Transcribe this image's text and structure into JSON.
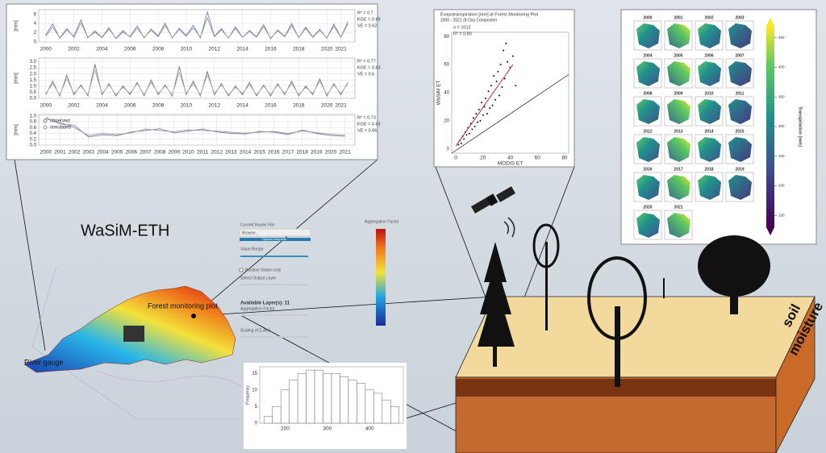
{
  "title": "WaSiM-ETH",
  "labels": {
    "forest_plot": "Forest monitoring plot",
    "gauge": "River gauge",
    "soil": "soil",
    "moisture": "moisture"
  },
  "ui": {
    "file_label": "Current Raster File",
    "browse": "Browse...",
    "upload": "Upload complete",
    "value_range": "Value Range",
    "positive": "Positive Values only",
    "select_layer": "Select Output Layer",
    "available": "Available Layer(s): 11",
    "aggregation": "Aggregation Factor",
    "scaling": "Scaling of Z-Axis",
    "colorbar_title": "Aggregation Factor"
  },
  "maps": {
    "years": [
      "2000",
      "2001",
      "2002",
      "2003",
      "2004",
      "2005",
      "2006",
      "2007",
      "2008",
      "2009",
      "2010",
      "2011",
      "2012",
      "2013",
      "2014",
      "2015",
      "2016",
      "2017",
      "2018",
      "2019",
      "2020",
      "2021"
    ],
    "colorbar_label": "Transpiration [mm]",
    "colorbar_lim": [
      130,
      470
    ],
    "colorbar_ticks": [
      150,
      200,
      250,
      300,
      350,
      400,
      450
    ]
  },
  "chart_data": [
    {
      "type": "line",
      "ylabel": "[mm]",
      "stats": [
        "R² = 0.7",
        "KGE = 0.69",
        "VE = 0.62"
      ],
      "x": [
        2000,
        2000.5,
        2001,
        2001.5,
        2002,
        2002.5,
        2003,
        2003.5,
        2004,
        2004.5,
        2005,
        2005.5,
        2006,
        2006.5,
        2007,
        2007.5,
        2008,
        2008.5,
        2009,
        2009.5,
        2010,
        2010.5,
        2011,
        2011.5,
        2012,
        2012.5,
        2013,
        2013.5,
        2014,
        2014.5,
        2015,
        2015.5,
        2016,
        2016.5,
        2017,
        2017.5,
        2018,
        2018.5,
        2019,
        2019.5,
        2020,
        2020.5,
        2021,
        2021.5
      ],
      "xlim": [
        1999.5,
        2022
      ],
      "xticks": [
        2000,
        2002,
        2004,
        2006,
        2008,
        2010,
        2012,
        2014,
        2016,
        2018,
        2020,
        2021
      ],
      "ylim": [
        0,
        7
      ],
      "yticks": [
        0,
        2,
        4,
        6
      ],
      "series": [
        {
          "name": "observed",
          "color": "#7a7fc0",
          "values": [
            1.5,
            3.9,
            0.8,
            2.6,
            1.2,
            4.8,
            0.9,
            2.4,
            1.0,
            3.1,
            0.7,
            2.2,
            1.1,
            3.5,
            0.9,
            2.8,
            1.3,
            4.1,
            0.8,
            3.0,
            1.4,
            3.6,
            0.9,
            6.5,
            1.2,
            2.9,
            0.8,
            3.3,
            1.0,
            2.5,
            1.1,
            3.8,
            0.7,
            2.6,
            1.2,
            4.0,
            0.9,
            3.2,
            1.1,
            2.7,
            0.8,
            3.9,
            1.0,
            4.4
          ]
        },
        {
          "name": "simulated",
          "color": "#9a9a9a",
          "values": [
            1.2,
            3.2,
            0.9,
            2.9,
            1.0,
            4.1,
            1.0,
            2.1,
            0.9,
            2.8,
            0.8,
            2.5,
            1.0,
            3.0,
            1.0,
            2.5,
            1.1,
            3.6,
            0.9,
            2.7,
            1.2,
            3.1,
            1.0,
            5.2,
            1.1,
            2.6,
            0.9,
            2.9,
            1.0,
            2.3,
            1.0,
            3.3,
            0.8,
            2.4,
            1.1,
            3.5,
            1.0,
            2.9,
            1.0,
            2.5,
            0.9,
            3.4,
            1.0,
            3.9
          ]
        }
      ]
    },
    {
      "type": "line",
      "ylabel": "[mm]",
      "stats": [
        "R² = 0.77",
        "KGE = 0.63",
        "VE = 0.6"
      ],
      "x": [
        2000,
        2000.5,
        2001,
        2001.5,
        2002,
        2002.5,
        2003,
        2003.5,
        2004,
        2004.5,
        2005,
        2005.5,
        2006,
        2006.5,
        2007,
        2007.5,
        2008,
        2008.5,
        2009,
        2009.5,
        2010,
        2010.5,
        2011,
        2011.5,
        2012,
        2012.5,
        2013,
        2013.5,
        2014,
        2014.5,
        2015,
        2015.5,
        2016,
        2016.5,
        2017,
        2017.5,
        2018,
        2018.5,
        2019,
        2019.5,
        2020,
        2020.5,
        2021,
        2021.5
      ],
      "xlim": [
        1999.5,
        2022
      ],
      "xticks": [
        2000,
        2002,
        2004,
        2006,
        2008,
        2010,
        2012,
        2014,
        2016,
        2018,
        2020,
        2021
      ],
      "ylim": [
        0,
        3.3
      ],
      "yticks": [
        {
          "value": 0,
          "label": "0.0"
        },
        0.5,
        {
          "value": 1,
          "label": "1.0"
        },
        1.5,
        {
          "value": 2,
          "label": "2.0"
        },
        2.5,
        {
          "value": 3,
          "label": "3.0"
        }
      ],
      "series": [
        {
          "name": "observed",
          "color": "#777777",
          "values": [
            0.3,
            1.4,
            0.2,
            1.9,
            0.3,
            1.1,
            0.2,
            2.8,
            0.3,
            1.2,
            0.2,
            1.0,
            0.3,
            1.3,
            0.2,
            1.5,
            0.3,
            1.1,
            0.2,
            2.6,
            0.3,
            1.4,
            0.2,
            2.2,
            0.3,
            1.2,
            0.2,
            1.0,
            0.3,
            1.3,
            0.2,
            1.1,
            0.2,
            1.2,
            0.3,
            1.4,
            0.2,
            1.0,
            0.3,
            1.6,
            0.2,
            1.2,
            0.3,
            1.3
          ]
        },
        {
          "name": "simulated",
          "color": "#b0b0b0",
          "values": [
            0.4,
            1.2,
            0.3,
            1.6,
            0.4,
            1.0,
            0.3,
            2.3,
            0.4,
            1.1,
            0.3,
            0.9,
            0.4,
            1.2,
            0.3,
            1.3,
            0.4,
            1.0,
            0.3,
            2.1,
            0.4,
            1.2,
            0.3,
            1.9,
            0.4,
            1.1,
            0.3,
            0.9,
            0.4,
            1.1,
            0.3,
            1.0,
            0.3,
            1.1,
            0.4,
            1.2,
            0.3,
            0.9,
            0.4,
            1.4,
            0.3,
            1.1,
            0.4,
            1.2
          ]
        }
      ]
    },
    {
      "type": "line",
      "ylabel": "[mm]",
      "stats": [
        "R² = 0.73",
        "KGE = 0.63",
        "VE = 0.66"
      ],
      "legend": true,
      "x": [
        2000,
        2001,
        2002,
        2003,
        2004,
        2005,
        2006,
        2007,
        2008,
        2009,
        2010,
        2011,
        2012,
        2013,
        2014,
        2015,
        2016,
        2017,
        2018,
        2019,
        2020,
        2021
      ],
      "xlim": [
        1999.5,
        2021.7
      ],
      "xticks": [
        2000,
        2001,
        2002,
        2003,
        2004,
        2005,
        2006,
        2007,
        2008,
        2009,
        2010,
        2011,
        2012,
        2013,
        2014,
        2015,
        2016,
        2017,
        2018,
        2019,
        2020,
        2021
      ],
      "ylim": [
        0,
        1.05
      ],
      "yticks": [
        {
          "value": 0,
          "label": "0.0"
        },
        0.2,
        0.4,
        0.6,
        0.8,
        {
          "value": 1,
          "label": "1.0"
        }
      ],
      "series": [
        {
          "name": "observed",
          "color": "#7a7fc0",
          "values": [
            0.95,
            0.72,
            0.68,
            0.28,
            0.35,
            0.32,
            0.45,
            0.5,
            0.56,
            0.42,
            0.48,
            0.55,
            0.45,
            0.4,
            0.38,
            0.47,
            0.44,
            0.36,
            0.52,
            0.4,
            0.33,
            0.3
          ]
        },
        {
          "name": "simulated",
          "color": "#9a9a9a",
          "values": [
            0.9,
            0.78,
            0.6,
            0.33,
            0.4,
            0.36,
            0.42,
            0.55,
            0.5,
            0.46,
            0.52,
            0.5,
            0.48,
            0.44,
            0.41,
            0.44,
            0.47,
            0.4,
            0.48,
            0.43,
            0.37,
            0.34
          ]
        }
      ]
    },
    {
      "type": "scatter",
      "title": "Evapotranspiration [mm] at Forest Monitoring Plot",
      "subtitle": "2000 - 2021 (8-Day Composite)",
      "annotations": [
        "n = 1012",
        "R² = 0.80"
      ],
      "xlabel": "MODIS ET",
      "ylabel": "WaSiM ET",
      "xlim": [
        -3,
        83
      ],
      "xticks": [
        0,
        20,
        40,
        60,
        80
      ],
      "ylim": [
        -3,
        83
      ],
      "yticks": [
        0,
        20,
        40,
        60,
        80
      ],
      "color": "#111111",
      "x": [
        2,
        3,
        4,
        5,
        6,
        7,
        8,
        9,
        10,
        11,
        12,
        13,
        14,
        15,
        16,
        17,
        18,
        19,
        20,
        21,
        22,
        23,
        24,
        25,
        26,
        27,
        28,
        29,
        30,
        31,
        32,
        33,
        34,
        35,
        36,
        38,
        40,
        42,
        44,
        37
      ],
      "y": [
        3,
        6,
        4,
        9,
        7,
        12,
        10,
        15,
        11,
        18,
        14,
        22,
        16,
        25,
        19,
        28,
        20,
        33,
        24,
        30,
        36,
        25,
        41,
        29,
        45,
        31,
        52,
        35,
        48,
        55,
        38,
        60,
        44,
        70,
        50,
        62,
        58,
        66,
        45,
        75
      ],
      "fit": {
        "color": "#d62728",
        "x": [
          0,
          42
        ],
        "y": [
          2,
          60
        ]
      }
    },
    {
      "type": "histogram",
      "ylabel": "Frequency",
      "color": "#ffffff",
      "bins": [
        150,
        170,
        190,
        210,
        230,
        250,
        270,
        290,
        310,
        330,
        350,
        370,
        390,
        410,
        430,
        450,
        470
      ],
      "counts": [
        2,
        5,
        10,
        13,
        15,
        16,
        16,
        15,
        15,
        14,
        13,
        12,
        10,
        9,
        7,
        5
      ],
      "xlim": [
        140,
        480
      ],
      "xticks": [
        200,
        300,
        400
      ],
      "ylim": [
        0,
        17
      ],
      "yticks": [
        0,
        5,
        10,
        15
      ]
    }
  ]
}
